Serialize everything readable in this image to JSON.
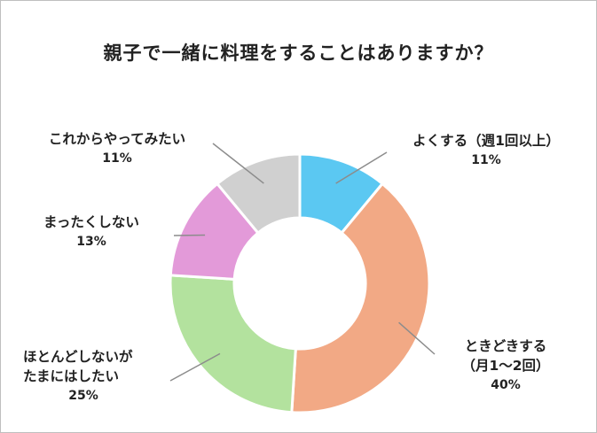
{
  "chart_data": {
    "type": "pie",
    "title": "親子で一緒に料理をすることはありますか？",
    "series": [
      {
        "name": "",
        "values": [
          {
            "label": "よくする（週1回以上）",
            "label_lines": [
              "よくする（週1回以上）"
            ],
            "value": 11,
            "value_label": "11%",
            "color": "#5bc8f2"
          },
          {
            "label": "ときどきする（月1〜2回）",
            "label_lines": [
              "ときどきする",
              "（月1〜2回）"
            ],
            "value": 40,
            "value_label": "40%",
            "color": "#f2a985"
          },
          {
            "label": "ほとんどしないがたまにはしたい",
            "label_lines": [
              "ほとんどしないが",
              "たまにはしたい"
            ],
            "value": 25,
            "value_label": "25%",
            "color": "#b3e29e"
          },
          {
            "label": "まったくしない",
            "label_lines": [
              "まったくしない"
            ],
            "value": 13,
            "value_label": "13%",
            "color": "#e39ad9"
          },
          {
            "label": "これからやってみたい",
            "label_lines": [
              "これからやってみたい"
            ],
            "value": 11,
            "value_label": "11%",
            "color": "#d0d0d0"
          }
        ]
      }
    ]
  }
}
